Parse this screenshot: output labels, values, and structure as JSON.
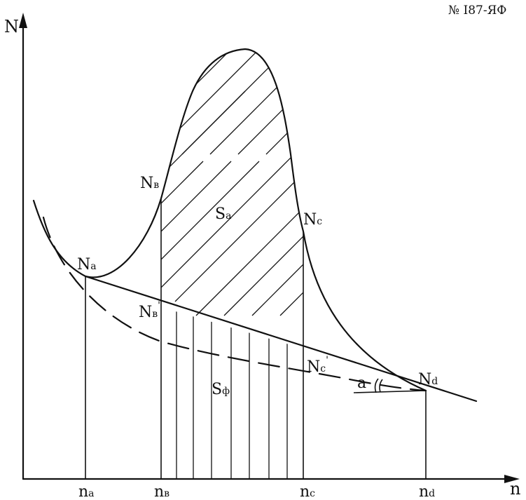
{
  "header": {
    "document_number": "№ I87-ЯФ"
  },
  "axes": {
    "y_label": "N",
    "x_label": "n"
  },
  "points": {
    "Na": {
      "main": "N",
      "sub": "a"
    },
    "Nb": {
      "main": "N",
      "sub": "в"
    },
    "Nc": {
      "main": "N",
      "sub": "c"
    },
    "Nd": {
      "main": "N",
      "sub": "d"
    },
    "Nb_prime": {
      "main": "N",
      "sub": "в",
      "prime": "'"
    },
    "Nc_prime": {
      "main": "N",
      "sub": "c",
      "prime": "'"
    }
  },
  "x_ticks": [
    {
      "main": "n",
      "sub": "a"
    },
    {
      "main": "n",
      "sub": "в"
    },
    {
      "main": "n",
      "sub": "c"
    },
    {
      "main": "n",
      "sub": "d"
    }
  ],
  "areas": {
    "Sa": {
      "main": "S",
      "sub": "a"
    },
    "Sf": {
      "main": "S",
      "sub": "ф"
    }
  },
  "angle": {
    "label": "a"
  }
}
